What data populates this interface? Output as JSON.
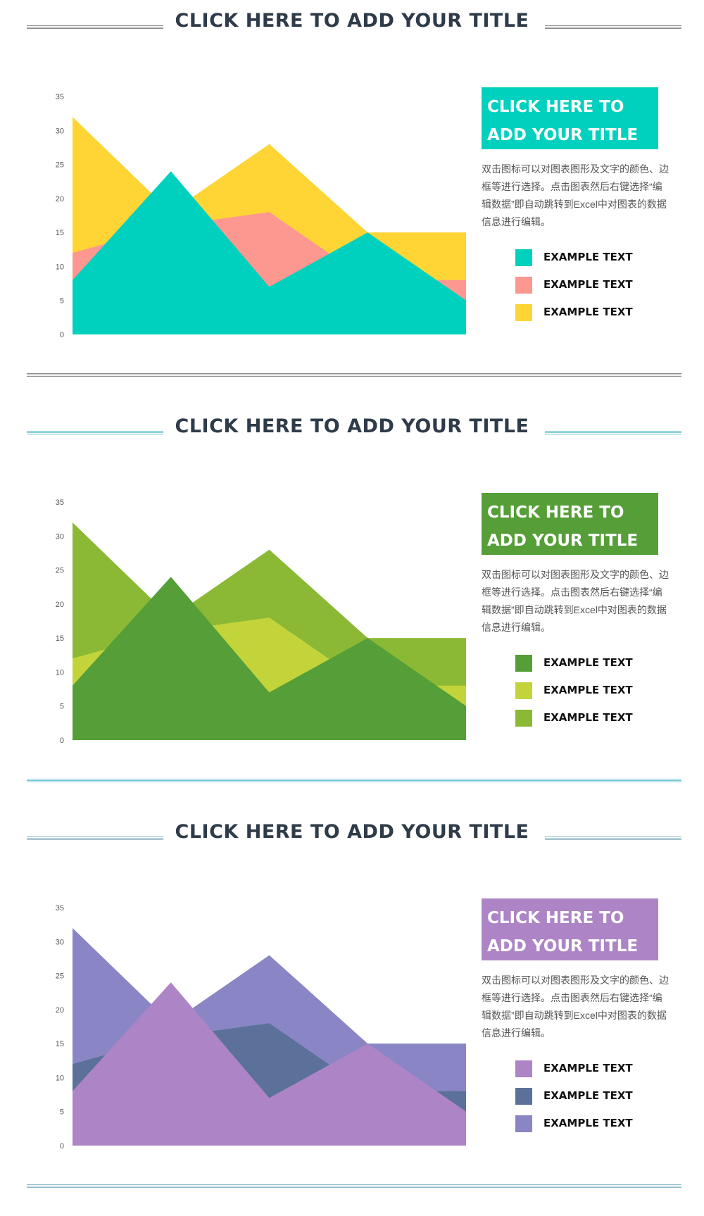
{
  "panels": [
    {
      "heading": "CLICK HERE TO ADD YOUR TITLE",
      "box_title": "CLICK HERE TO ADD YOUR TITLE",
      "description": "双击图标可以对图表图形及文字的颜色、边框等进行选择。点击图表然后右键选择“编辑数据”即自动跳转到Excel中对图表的数据信息进行编辑。",
      "accent_color": "#00d1be",
      "rule_color": "#8c8c8c",
      "legend": [
        {
          "label": "EXAMPLE TEXT",
          "color": "#00d1be"
        },
        {
          "label": "EXAMPLE TEXT",
          "color": "#fd9891"
        },
        {
          "label": "EXAMPLE TEXT",
          "color": "#ffd535"
        }
      ],
      "chart_data": {
        "type": "area",
        "x": [
          1,
          2,
          3,
          4,
          5
        ],
        "ylim": [
          0,
          35
        ],
        "yticks": [
          0,
          5,
          10,
          15,
          20,
          25,
          30,
          35
        ],
        "grid": false,
        "series": [
          {
            "values": [
              32,
              18,
              28,
              15,
              15
            ],
            "color": "#ffd535"
          },
          {
            "values": [
              12,
              16,
              18,
              8,
              8
            ],
            "color": "#fd9891"
          },
          {
            "values": [
              8,
              24,
              7,
              15,
              5
            ],
            "color": "#00d1be"
          }
        ]
      }
    },
    {
      "heading": "CLICK HERE TO ADD YOUR TITLE",
      "box_title": "CLICK HERE TO ADD YOUR TITLE",
      "description": "双击图标可以对图表图形及文字的颜色、边框等进行选择。点击图表然后右键选择“编辑数据”即自动跳转到Excel中对图表的数据信息进行编辑。",
      "accent_color": "#559e38",
      "rule_color": "#6ec6d3",
      "legend": [
        {
          "label": "EXAMPLE TEXT",
          "color": "#559e38"
        },
        {
          "label": "EXAMPLE TEXT",
          "color": "#c3d43b"
        },
        {
          "label": "EXAMPLE TEXT",
          "color": "#8bb935"
        }
      ],
      "chart_data": {
        "type": "area",
        "x": [
          1,
          2,
          3,
          4,
          5
        ],
        "ylim": [
          0,
          35
        ],
        "yticks": [
          0,
          5,
          10,
          15,
          20,
          25,
          30,
          35
        ],
        "grid": false,
        "series": [
          {
            "values": [
              32,
              18,
              28,
              15,
              15
            ],
            "color": "#8bb935"
          },
          {
            "values": [
              12,
              16,
              18,
              8,
              8
            ],
            "color": "#c3d43b"
          },
          {
            "values": [
              8,
              24,
              7,
              15,
              5
            ],
            "color": "#559e38"
          }
        ]
      }
    },
    {
      "heading": "CLICK HERE TO ADD YOUR TITLE",
      "box_title": "CLICK HERE TO ADD YOUR TITLE",
      "description": "双击图标可以对图表图形及文字的颜色、边框等进行选择。点击图表然后右键选择“编辑数据”即自动跳转到Excel中对图表的数据信息进行编辑。",
      "accent_color": "#ad84c5",
      "rule_color": "#8fb8c9",
      "legend": [
        {
          "label": "EXAMPLE TEXT",
          "color": "#ad84c5"
        },
        {
          "label": "EXAMPLE TEXT",
          "color": "#5c7199"
        },
        {
          "label": "EXAMPLE TEXT",
          "color": "#8a86c6"
        }
      ],
      "chart_data": {
        "type": "area",
        "x": [
          1,
          2,
          3,
          4,
          5
        ],
        "ylim": [
          0,
          35
        ],
        "yticks": [
          0,
          5,
          10,
          15,
          20,
          25,
          30,
          35
        ],
        "grid": false,
        "series": [
          {
            "values": [
              32,
              18,
              28,
              15,
              15
            ],
            "color": "#8a86c6"
          },
          {
            "values": [
              12,
              16,
              18,
              8,
              8
            ],
            "color": "#5c7199"
          },
          {
            "values": [
              8,
              24,
              7,
              15,
              5
            ],
            "color": "#ad84c5"
          }
        ]
      }
    }
  ]
}
